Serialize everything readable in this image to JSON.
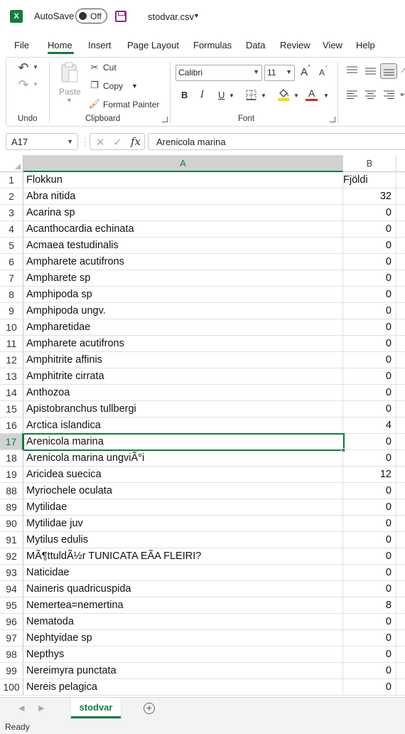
{
  "titlebar": {
    "app_icon": "X",
    "autosave_label": "AutoSave",
    "autosave_state": "Off",
    "filename": "stodvar.csv"
  },
  "menu": {
    "tabs": [
      "File",
      "Home",
      "Insert",
      "Page Layout",
      "Formulas",
      "Data",
      "Review",
      "View",
      "Help"
    ],
    "active": "Home"
  },
  "ribbon": {
    "undo_group": "Undo",
    "clipboard_group": "Clipboard",
    "paste": "Paste",
    "cut": "Cut",
    "copy": "Copy",
    "format_painter": "Format Painter",
    "font_group": "Font",
    "font_name": "Calibri",
    "font_size": "11",
    "bold": "B",
    "italic": "I",
    "underline": "U",
    "increase_font": "A",
    "decrease_font": "A",
    "font_color_letter": "A",
    "highlight_color": "#ffd700",
    "font_color": "#e02020"
  },
  "formula_bar": {
    "name_box": "A17",
    "fx": "fx",
    "content": "Arenicola marina"
  },
  "columns": [
    "A",
    "B"
  ],
  "selected_cell": {
    "row": "17",
    "col": "A"
  },
  "rows": [
    {
      "n": "1",
      "a": "Flokkun",
      "b": "Fjöldi",
      "header": true
    },
    {
      "n": "2",
      "a": "Abra nitida",
      "b": "32"
    },
    {
      "n": "3",
      "a": "Acarina sp",
      "b": "0"
    },
    {
      "n": "4",
      "a": "Acanthocardia echinata",
      "b": "0"
    },
    {
      "n": "5",
      "a": "Acmaea testudinalis",
      "b": "0"
    },
    {
      "n": "6",
      "a": "Ampharete acutifrons",
      "b": "0"
    },
    {
      "n": "7",
      "a": "Ampharete sp",
      "b": "0"
    },
    {
      "n": "8",
      "a": "Amphipoda sp",
      "b": "0"
    },
    {
      "n": "9",
      "a": "Amphipoda ungv.",
      "b": "0"
    },
    {
      "n": "10",
      "a": "Ampharetidae",
      "b": "0"
    },
    {
      "n": "11",
      "a": "Ampharete acutifrons",
      "b": "0"
    },
    {
      "n": "12",
      "a": "Amphitrite affinis",
      "b": "0"
    },
    {
      "n": "13",
      "a": "Amphitrite cirrata",
      "b": "0"
    },
    {
      "n": "14",
      "a": "Anthozoa",
      "b": "0"
    },
    {
      "n": "15",
      "a": "Apistobranchus tullbergi",
      "b": "0"
    },
    {
      "n": "16",
      "a": "Arctica islandica",
      "b": "4"
    },
    {
      "n": "17",
      "a": "Arenicola marina",
      "b": "0"
    },
    {
      "n": "18",
      "a": "Arenicola marina ungviÃ°i",
      "b": "0"
    },
    {
      "n": "19",
      "a": "Aricidea suecica",
      "b": "12"
    },
    {
      "n": "88",
      "a": "Myriochele oculata",
      "b": "0"
    },
    {
      "n": "89",
      "a": "Mytilidae",
      "b": "0"
    },
    {
      "n": "90",
      "a": "Mytilidae juv",
      "b": "0"
    },
    {
      "n": "91",
      "a": "Mytilus edulis",
      "b": "0"
    },
    {
      "n": "92",
      "a": "MÃ¶ttuldÃ½r TUNICATA EÃA FLEIRI?",
      "b": "0"
    },
    {
      "n": "93",
      "a": "Naticidae",
      "b": "0"
    },
    {
      "n": "94",
      "a": "Naineris quadricuspida",
      "b": "0"
    },
    {
      "n": "95",
      "a": "Nemertea=nemertina",
      "b": "8"
    },
    {
      "n": "96",
      "a": "Nematoda",
      "b": "0"
    },
    {
      "n": "97",
      "a": "Nephtyidae sp",
      "b": "0"
    },
    {
      "n": "98",
      "a": "Nepthys",
      "b": "0"
    },
    {
      "n": "99",
      "a": "Nereimyra punctata",
      "b": "0"
    },
    {
      "n": "100",
      "a": "Nereis pelagica",
      "b": "0"
    }
  ],
  "sheets": {
    "active": "stodvar",
    "add": "+"
  },
  "status": {
    "text": "Ready"
  }
}
